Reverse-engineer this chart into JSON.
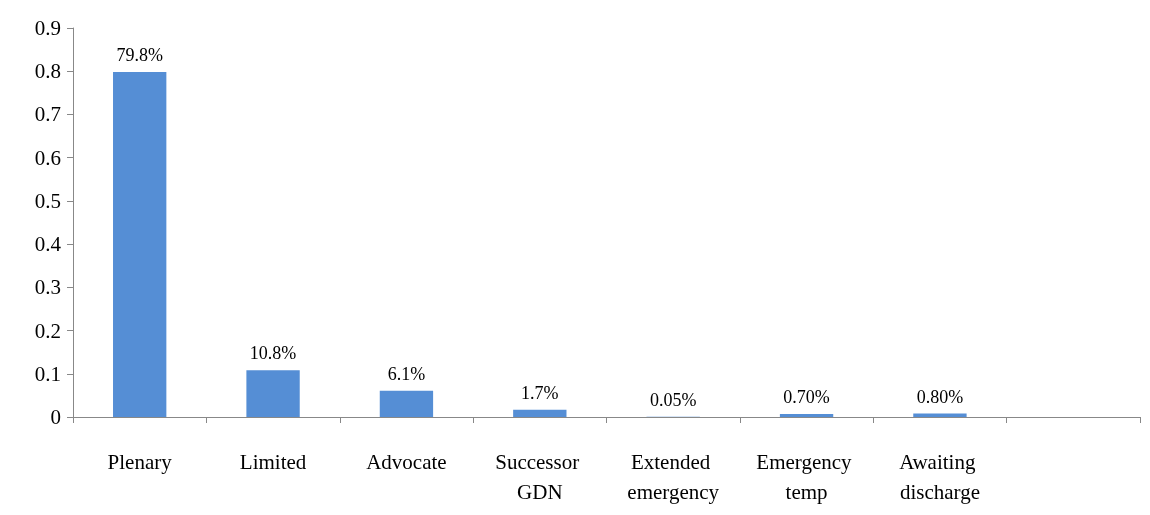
{
  "chart_data": {
    "type": "bar",
    "categories": [
      "Plenary",
      "Limited",
      "Advocate",
      "Successor GDN",
      "Extended emergency",
      "Emergency temp",
      "Awaiting discharge",
      null
    ],
    "values": [
      0.798,
      0.108,
      0.061,
      0.017,
      0.0005,
      0.007,
      0.008,
      null
    ],
    "value_labels": [
      "79.8%",
      "10.8%",
      "6.1%",
      "1.7%",
      "0.05%",
      "0.70%",
      "0.80%",
      null
    ],
    "color": "#558ed5",
    "ylim": [
      0,
      0.9
    ],
    "yticks": [
      0,
      0.1,
      0.2,
      0.3,
      0.4,
      0.5,
      0.6,
      0.7,
      0.8,
      0.9
    ],
    "grid": false
  }
}
